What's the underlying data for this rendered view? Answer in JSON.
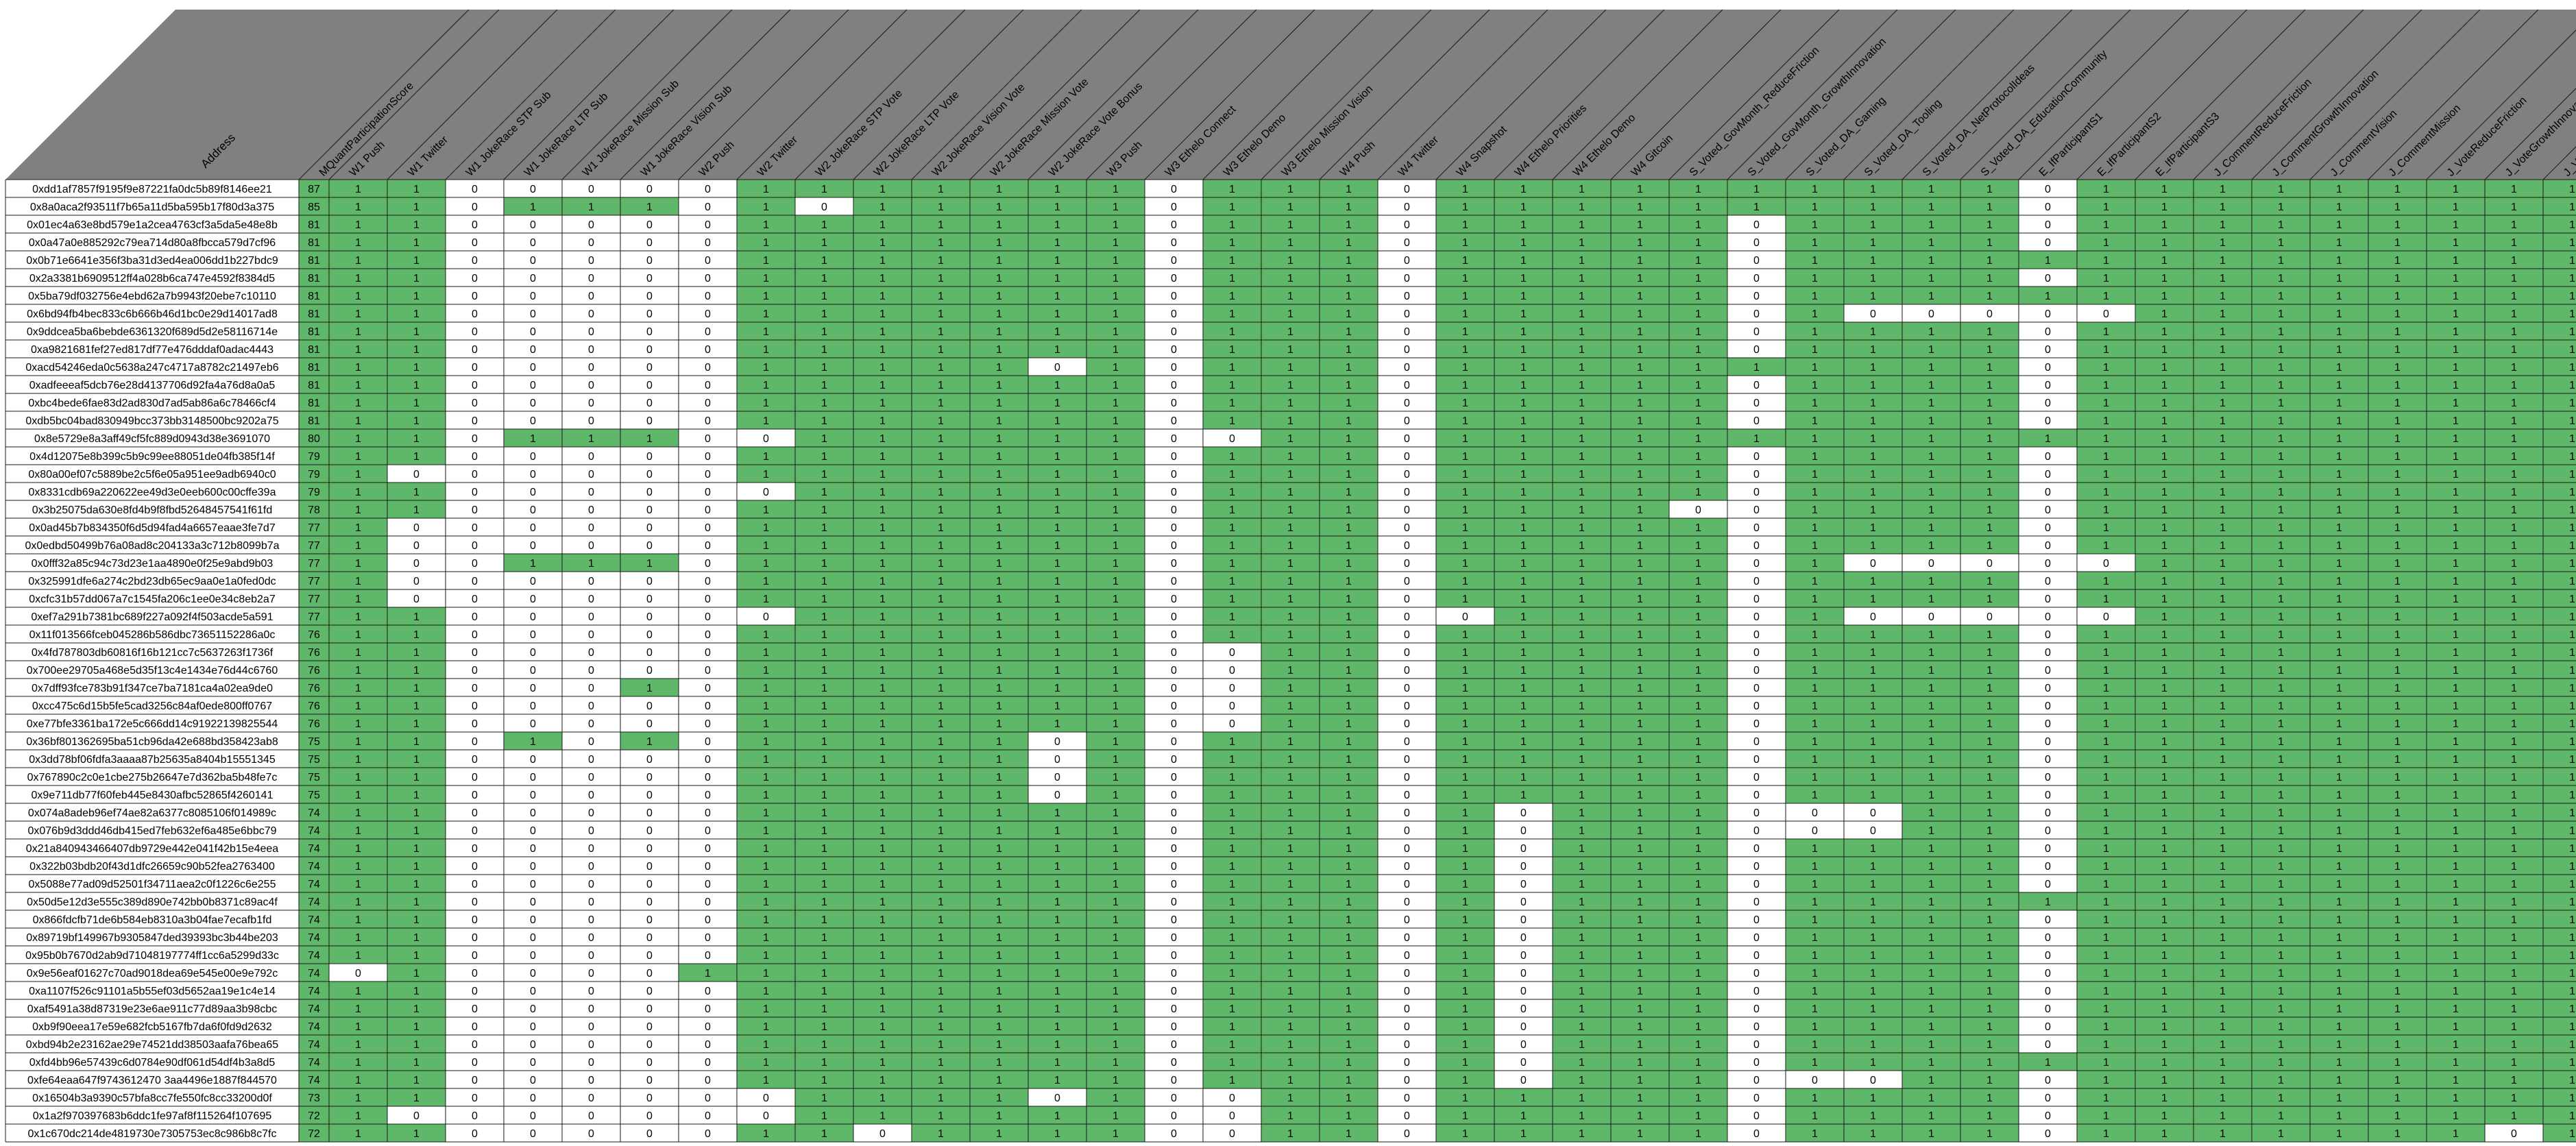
{
  "sheet": {
    "corner_label": "Address",
    "score_label": "MQuantParticipationScore",
    "columns": [
      "W1 Push",
      "W1 Twitter",
      "W1 JokeRace STP Sub",
      "W1 JokeRace LTP Sub",
      "W1 JokeRace Mission Sub",
      "W1 JokeRace Vision Sub",
      "W2 Push",
      "W2 Twitter",
      "W2 JokeRace STP Vote",
      "W2 JokeRace LTP Vote",
      "W2 JokeRace Vision Vote",
      "W2 JokeRace Mission Vote",
      "W2 JokeRace Vote Bonus",
      "W3 Push",
      "W3 Ethelo Connect",
      "W3 Ethelo Demo",
      "W3 Ethelo Mission Vision",
      "W4 Push",
      "W4 Twitter",
      "W4 Snapshot",
      "W4 Ethelo Priorities",
      "W4 Ethelo Demo",
      "W4 Gitcoin",
      "S_Voted_GovMonth_ReduceFriction",
      "S_Voted_GovMonth_GrowthInnovation",
      "S_Voted_DA_Gaming",
      "S_Voted_DA_Tooling",
      "S_Voted_DA_NetProtocolIdeas",
      "S_Voted_DA_EducationCommunity",
      "E_IfParticipantS1",
      "E_IfParticipantS2",
      "E_IfParticipantS3",
      "J_CommentReduceFriction",
      "J_CommentGrowthInnovation",
      "J_CommentVision",
      "J_CommentMission",
      "J_VoteReduceFriction",
      "J_VoteGrowthInnova",
      "J_Vo"
    ],
    "rows": [
      {
        "address": "0xdd1af7857f9195f9e87221fa0dc5b89f8146ee21",
        "score": "87",
        "cells": "110000011111110111011111111110111111111"
      },
      {
        "address": "0x8a0aca2f93511f7b65a11d5ba595b17f80d3a375",
        "score": "85",
        "cells": "110111010111110111011111111110111111111"
      },
      {
        "address": "0x01ec4a63e8bd579e1a2cea4763cf3a5da5e48e8b",
        "score": "81",
        "cells": "110000011111110111011111011110111111111"
      },
      {
        "address": "0x0a47a0e885292c79ea714d80a8fbcca579d7cf96",
        "score": "81",
        "cells": "110000011111110111011111011110111111111"
      },
      {
        "address": "0x0b71e6641e356f3ba31d3ed4ea006dd1b227bdc9",
        "score": "81",
        "cells": "110000011111110111011111011111111111111"
      },
      {
        "address": "0x2a3381b6909512ff4a028b6ca747e4592f8384d5",
        "score": "81",
        "cells": "110000011111110111011111011110111111111"
      },
      {
        "address": "0x5ba79df032756e4ebd62a7b9943f20ebe7c10110",
        "score": "81",
        "cells": "110000011111110111011111011111111111111"
      },
      {
        "address": "0x6bd94fb4bec833c6b666b46d1bc0e29d14017ad8",
        "score": "81",
        "cells": "110000011111110111011111010000011111111"
      },
      {
        "address": "0x9ddcea5ba6bebde6361320f689d5d2e58116714e",
        "score": "81",
        "cells": "110000011111110111011111011110111111111"
      },
      {
        "address": "0xa9821681fef27ed817df77e476dddaf0adac4443",
        "score": "81",
        "cells": "110000011111110111011111011110111111111"
      },
      {
        "address": "0xacd54246eda0c5638a247c4717a8782c21497eb6",
        "score": "81",
        "cells": "110000011111010111011111111110111111111"
      },
      {
        "address": "0xadfeeeaf5dcb76e28d4137706d92fa4a76d8a0a5",
        "score": "81",
        "cells": "110000011111110111011111011110111111111"
      },
      {
        "address": "0xbc4bede6fae83d2ad830d7ad5ab86a6c78466cf4",
        "score": "81",
        "cells": "110000011111110111011111011110111111111"
      },
      {
        "address": "0xdb5bc04bad830949bcc373bb3148500bc9202a75",
        "score": "81",
        "cells": "110000011111110111011111011110111111111"
      },
      {
        "address": "0x8e5729e8a3aff49cf5fc889d0943d38e3691070",
        "score": "80",
        "cells": "110111001111110011011111111111111111111"
      },
      {
        "address": "0x4d12075e8b399c5b9c99ee88051de04fb385f14f",
        "score": "79",
        "cells": "110000011111110111011111011110111111111"
      },
      {
        "address": "0x80a00ef07c5889be2c5f6e05a951ee9adb6940c0",
        "score": "79",
        "cells": "100000011111110111011111011110111111111"
      },
      {
        "address": "0x8331cdb69a220622ee49d3e0eeb600c00cffe39a",
        "score": "79",
        "cells": "110000001111110111011111011110111111111"
      },
      {
        "address": "0x3b25075da630e8fd4b9f8fbd52648457541f61fd",
        "score": "78",
        "cells": "110000011111110111011110011110111111111"
      },
      {
        "address": "0x0ad45b7b834350f6d5d94fad4a6657eaae3fe7d7",
        "score": "77",
        "cells": "100000011111110111011111011110111111111"
      },
      {
        "address": "0x0edbd50499b76a08ad8c204133a3c712b8099b7a",
        "score": "77",
        "cells": "100000011111110111011111011110111111111"
      },
      {
        "address": "0x0fff32a85c94c73d23e1aa4890e0f25e9abd9b03",
        "score": "77",
        "cells": "100111011111110111011111010000011111111"
      },
      {
        "address": "0x325991dfe6a274c2bd23db65ec9aa0e1a0fed0dc",
        "score": "77",
        "cells": "100000011111110111011111011110111111111"
      },
      {
        "address": "0xcfc31b57dd067a7c1545fa206c1ee0e34c8eb2a7",
        "score": "77",
        "cells": "100000011111110111011111011110111111111"
      },
      {
        "address": "0xef7a291b7381bc689f227a092f4f503acde5a591",
        "score": "77",
        "cells": "110000001111110111001111010000011111111"
      },
      {
        "address": "0x11f013566fceb045286b586dbc73651152286a0c",
        "score": "76",
        "cells": "110000011111110111011111011110111111111"
      },
      {
        "address": "0x4fd787803db60816f16b121cc7c5637263f1736f",
        "score": "76",
        "cells": "110000011111110011011111011110111111111"
      },
      {
        "address": "0x700ee29705a468e5d35f13c4e1434e76d44c6760",
        "score": "76",
        "cells": "110000011111110011011111011110111111111"
      },
      {
        "address": "0x7dff93fce783b91f347ce7ba7181ca4a02ea9de0",
        "score": "76",
        "cells": "110001011111110011011111011110111111111"
      },
      {
        "address": "0xcc475c6d15b5fe5cad3256c84af0ede800ff0767",
        "score": "76",
        "cells": "110000011111110011011111011110111111111"
      },
      {
        "address": "0xe77bfe3361ba172e5c666dd14c91922139825544",
        "score": "76",
        "cells": "110000011111110011011111011110111111111"
      },
      {
        "address": "0x36bf801362695ba51cb96da42e688bd358423ab8",
        "score": "75",
        "cells": "110101011111010111011111011110111111111"
      },
      {
        "address": "0x3dd78bf06fdfa3aaaa87b25635a8404b15551345",
        "score": "75",
        "cells": "110000011111010111011111011110111111111"
      },
      {
        "address": "0x767890c2c0e1cbe275b26647e7d362ba5b48fe7c",
        "score": "75",
        "cells": "110000011111010111011111011110111111111"
      },
      {
        "address": "0x9e711db77f60feb445e8430afbc52865f4260141",
        "score": "75",
        "cells": "110000011111010111011111011110111111111"
      },
      {
        "address": "0x074a8adeb96ef74ae82a6377c8085106f014989c",
        "score": "74",
        "cells": "110000011111110111010111000110111111111"
      },
      {
        "address": "0x076b9d3ddd46db415ed7feb632ef6a485e6bbc79",
        "score": "74",
        "cells": "110000011111110111010111000110111111111"
      },
      {
        "address": "0x21a840943466407db9729e442e041f42b15e4eea",
        "score": "74",
        "cells": "110000011111110111010111011110111111111"
      },
      {
        "address": "0x322b03bdb20f43d1dfc26659c90b52fea2763400",
        "score": "74",
        "cells": "110000011111110111010111011110111111111"
      },
      {
        "address": "0x5088e77ad09d52501f34711aea2c0f1226c6e255",
        "score": "74",
        "cells": "110000011111110111010111011110111111111"
      },
      {
        "address": "0x50d5e12d3e555c389d890e742bb0b8371c89ac4f",
        "score": "74",
        "cells": "110000011111110111010111011111111111111"
      },
      {
        "address": "0x866fdcfb71de6b584eb8310a3b04fae7ecafb1fd",
        "score": "74",
        "cells": "110000011111110111010111011110111111111"
      },
      {
        "address": "0x89719bf149967b9305847ded39393bc3b44be203",
        "score": "74",
        "cells": "110000011111110111010111011110111111111"
      },
      {
        "address": "0x95b0b7670d2ab9d71048197774ff1cc6a5299d33c",
        "score": "74",
        "cells": "110000011111110111010111011110111111111"
      },
      {
        "address": "0x9e56eaf01627c70ad9018dea69e545e00e9e792c",
        "score": "74",
        "cells": "010000111111110111010111011110111111111"
      },
      {
        "address": "0xa1107f526c91101a5b55ef03d5652aa19e1c4e14",
        "score": "74",
        "cells": "110000011111110111010111011110111111111"
      },
      {
        "address": "0xaf5491a38d87319e23e6ae911c77d89aa3b98cbc",
        "score": "74",
        "cells": "110000011111110111010111011110111111111"
      },
      {
        "address": "0xb9f90eea17e59e682fcb5167fb7da6f0fd9d2632",
        "score": "74",
        "cells": "110000011111110111010111011110111111111"
      },
      {
        "address": "0xbd94b2e23162ae29e74521dd38503aafa76bea65",
        "score": "74",
        "cells": "110000011111110111010111011110111111111"
      },
      {
        "address": "0xfd4bb96e57439c6d0784e90df061d54df4b3a8d5",
        "score": "74",
        "cells": "110000011111110111010111011111111111111"
      },
      {
        "address": "0xfe64eaa647f9743612470 3aa4496e1887f844570",
        "score": "74",
        "cells": "110000011111110111010111000110111111111"
      },
      {
        "address": "0x16504b3a9390c57bfa8cc7fe550fc8cc33200d0f",
        "score": "73",
        "cells": "110000001111010011011111011110111111111"
      },
      {
        "address": "0x1a2f970397683b6ddc1fe97af8f115264f107695",
        "score": "72",
        "cells": "100000001111110011011111011110111111111"
      },
      {
        "address": "0x1c670dc214de4819730e7305753ec8c986b8c7fc",
        "score": "72",
        "cells": "110000011011110011011111011110111111101"
      }
    ]
  },
  "colors": {
    "filled": "#5fb86a",
    "empty": "#ffffff",
    "header": "#808080",
    "grid": "#1a1a1a"
  }
}
